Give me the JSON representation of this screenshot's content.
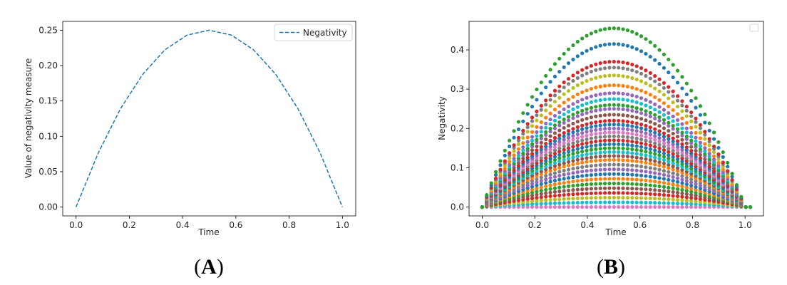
{
  "chart_data": [
    {
      "type": "line",
      "panel_label": "A",
      "xlabel": "Time",
      "ylabel": "Value of negativity measure",
      "xlim": [
        -0.05,
        1.05
      ],
      "ylim": [
        -0.0125,
        0.2625
      ],
      "xticks": [
        0.0,
        0.2,
        0.4,
        0.6,
        0.8,
        1.0
      ],
      "xtick_labels": [
        "0.0",
        "0.2",
        "0.4",
        "0.6",
        "0.8",
        "1.0"
      ],
      "yticks": [
        0.0,
        0.05,
        0.1,
        0.15,
        0.2,
        0.25
      ],
      "ytick_labels": [
        "0.00",
        "0.05",
        "0.10",
        "0.15",
        "0.20",
        "0.25"
      ],
      "legend": {
        "position": "top-right",
        "entries": [
          "Negativity"
        ]
      },
      "series": [
        {
          "name": "Negativity",
          "style": "dashed",
          "color": "#1f77b4",
          "x": [
            0.0,
            0.0833,
            0.1667,
            0.25,
            0.3333,
            0.4167,
            0.5,
            0.5833,
            0.6667,
            0.75,
            0.8333,
            0.9167,
            1.0
          ],
          "y": [
            0.0,
            0.0764,
            0.1389,
            0.1875,
            0.2222,
            0.2431,
            0.25,
            0.2431,
            0.2222,
            0.1875,
            0.1389,
            0.0764,
            0.0
          ]
        }
      ]
    },
    {
      "type": "scatter",
      "panel_label": "B",
      "xlabel": "Time",
      "ylabel": "Negativity",
      "xlim": [
        -0.05,
        1.07
      ],
      "ylim": [
        -0.0225,
        0.4725
      ],
      "xticks": [
        0.0,
        0.2,
        0.4,
        0.6,
        0.8,
        1.0
      ],
      "xtick_labels": [
        "0.0",
        "0.2",
        "0.4",
        "0.6",
        "0.8",
        "1.0"
      ],
      "yticks": [
        0.0,
        0.1,
        0.2,
        0.3,
        0.4
      ],
      "ytick_labels": [
        "0.0",
        "0.1",
        "0.2",
        "0.3",
        "0.4"
      ],
      "legend": {
        "position": "top-right",
        "entries": []
      },
      "x_end": 1.02,
      "points_per_series": 60,
      "series_peaks": [
        0.0,
        0.012,
        0.024,
        0.036,
        0.048,
        0.06,
        0.072,
        0.084,
        0.096,
        0.108,
        0.12,
        0.13,
        0.14,
        0.15,
        0.16,
        0.17,
        0.18,
        0.19,
        0.2,
        0.21,
        0.22,
        0.235,
        0.25,
        0.26,
        0.275,
        0.29,
        0.31,
        0.335,
        0.355,
        0.37,
        0.415,
        0.455
      ],
      "series_colors": [
        "#e377c2",
        "#17becf",
        "#bcbd22",
        "#d62728",
        "#8c564b",
        "#2ca02c",
        "#ff7f0e",
        "#1f77b4",
        "#9467bd",
        "#7f7f7f",
        "#ff7f0e",
        "#8c564b",
        "#17becf",
        "#2ca02c",
        "#1f77b4",
        "#d62728",
        "#7f7f7f",
        "#e377c2",
        "#9467bd",
        "#1f77b4",
        "#d62728",
        "#8c564b",
        "#9467bd",
        "#2ca02c",
        "#17becf",
        "#9467bd",
        "#ff7f0e",
        "#bcbd22",
        "#7f7f7f",
        "#d62728",
        "#1f77b4",
        "#2ca02c"
      ]
    }
  ]
}
